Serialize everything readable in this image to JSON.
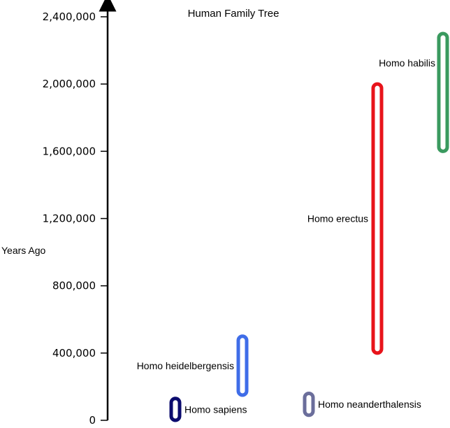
{
  "chart_data": {
    "type": "range",
    "title": "Human Family Tree",
    "ylabel": "Years Ago",
    "xlabel": "",
    "ylim": [
      0,
      2400000
    ],
    "yticks": [
      {
        "value": 0,
        "label": "0"
      },
      {
        "value": 400000,
        "label": "400,000"
      },
      {
        "value": 800000,
        "label": "800,000"
      },
      {
        "value": 1200000,
        "label": "1,200,000"
      },
      {
        "value": 1600000,
        "label": "1,600,000"
      },
      {
        "value": 2000000,
        "label": "2,000,000"
      },
      {
        "value": 2400000,
        "label": "2,400,000"
      }
    ],
    "series": [
      {
        "name": "Homo habilis",
        "start": 2300000,
        "end": 1600000,
        "color": "#3a9a5f"
      },
      {
        "name": "Homo erectus",
        "start": 2000000,
        "end": 400000,
        "color": "#e8141b"
      },
      {
        "name": "Homo heidelbergensis",
        "start": 500000,
        "end": 150000,
        "color": "#3f6de8"
      },
      {
        "name": "Homo sapiens",
        "start": 130000,
        "end": 0,
        "color": "#0b0b6e"
      },
      {
        "name": "Homo neanderthalensis",
        "start": 160000,
        "end": 30000,
        "color": "#6b6e9b"
      }
    ]
  }
}
